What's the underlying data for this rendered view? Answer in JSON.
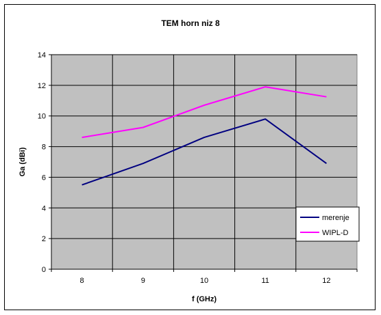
{
  "chart_data": {
    "type": "line",
    "title": "TEM horn niz 8",
    "xlabel": "f (GHz)",
    "ylabel": "Ga (dBi)",
    "categories": [
      "8",
      "9",
      "10",
      "11",
      "12"
    ],
    "ylim": [
      0,
      14
    ],
    "yticks": [
      "0",
      "2",
      "4",
      "6",
      "8",
      "10",
      "12",
      "14"
    ],
    "grid": true,
    "plot_background": "#c0c0c0",
    "legend_position": "bottom-right",
    "series": [
      {
        "name": "merenje",
        "color": "#000080",
        "values": [
          5.5,
          6.9,
          8.6,
          9.8,
          6.9
        ]
      },
      {
        "name": "WIPL-D",
        "color": "#ff00ff",
        "values": [
          8.6,
          9.25,
          10.7,
          11.9,
          11.25
        ]
      }
    ]
  }
}
